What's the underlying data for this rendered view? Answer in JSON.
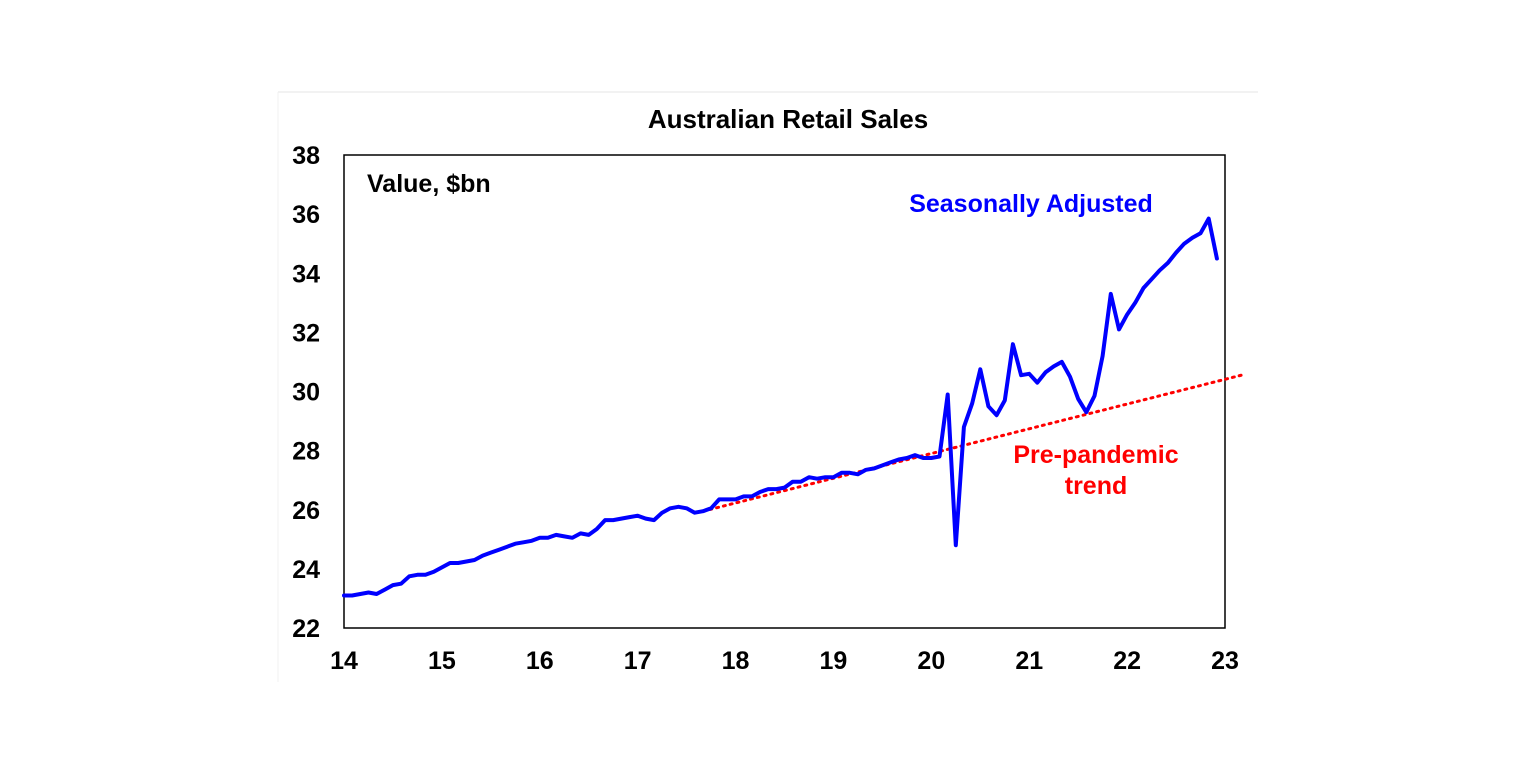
{
  "chart_data": {
    "type": "line",
    "title": "Australian Retail Sales",
    "ylabel": "Value, $bn",
    "xlabel": "",
    "xlim": [
      2014,
      2023
    ],
    "ylim": [
      22,
      38
    ],
    "x_ticks": [
      "14",
      "15",
      "16",
      "17",
      "18",
      "19",
      "20",
      "21",
      "22",
      "23"
    ],
    "y_ticks": [
      "22",
      "24",
      "26",
      "28",
      "30",
      "32",
      "34",
      "36",
      "38"
    ],
    "grid": false,
    "colors": {
      "seasonally_adjusted": "#0000ff",
      "trend": "#ff0000",
      "axis": "#000000"
    },
    "series": [
      {
        "name": "Seasonally Adjusted",
        "style": "solid",
        "x": [
          2014.0,
          2014.083,
          2014.167,
          2014.25,
          2014.333,
          2014.417,
          2014.5,
          2014.583,
          2014.667,
          2014.75,
          2014.833,
          2014.917,
          2015.0,
          2015.083,
          2015.167,
          2015.25,
          2015.333,
          2015.417,
          2015.5,
          2015.583,
          2015.667,
          2015.75,
          2015.833,
          2015.917,
          2016.0,
          2016.083,
          2016.167,
          2016.25,
          2016.333,
          2016.417,
          2016.5,
          2016.583,
          2016.667,
          2016.75,
          2016.833,
          2016.917,
          2017.0,
          2017.083,
          2017.167,
          2017.25,
          2017.333,
          2017.417,
          2017.5,
          2017.583,
          2017.667,
          2017.75,
          2017.833,
          2017.917,
          2018.0,
          2018.083,
          2018.167,
          2018.25,
          2018.333,
          2018.417,
          2018.5,
          2018.583,
          2018.667,
          2018.75,
          2018.833,
          2018.917,
          2019.0,
          2019.083,
          2019.167,
          2019.25,
          2019.333,
          2019.417,
          2019.5,
          2019.583,
          2019.667,
          2019.75,
          2019.833,
          2019.917,
          2020.0,
          2020.083,
          2020.167,
          2020.25,
          2020.333,
          2020.417,
          2020.5,
          2020.583,
          2020.667,
          2020.75,
          2020.833,
          2020.917,
          2021.0,
          2021.083,
          2021.167,
          2021.25,
          2021.333,
          2021.417,
          2021.5,
          2021.583,
          2021.667,
          2021.75,
          2021.833,
          2021.917,
          2022.0,
          2022.083,
          2022.167,
          2022.25,
          2022.333,
          2022.417,
          2022.5,
          2022.583,
          2022.667,
          2022.75,
          2022.833,
          2022.917
        ],
        "values": [
          23.1,
          23.1,
          23.15,
          23.2,
          23.15,
          23.3,
          23.45,
          23.5,
          23.75,
          23.8,
          23.8,
          23.9,
          24.05,
          24.2,
          24.2,
          24.25,
          24.3,
          24.45,
          24.55,
          24.65,
          24.75,
          24.85,
          24.9,
          24.95,
          25.05,
          25.05,
          25.15,
          25.1,
          25.05,
          25.2,
          25.15,
          25.35,
          25.65,
          25.65,
          25.7,
          25.75,
          25.8,
          25.7,
          25.65,
          25.9,
          26.05,
          26.1,
          26.05,
          25.9,
          25.95,
          26.05,
          26.35,
          26.35,
          26.35,
          26.45,
          26.45,
          26.6,
          26.7,
          26.7,
          26.75,
          26.95,
          26.95,
          27.1,
          27.05,
          27.1,
          27.1,
          27.25,
          27.25,
          27.2,
          27.35,
          27.4,
          27.5,
          27.6,
          27.7,
          27.75,
          27.85,
          27.75,
          27.75,
          27.8,
          29.9,
          24.8,
          28.8,
          29.6,
          30.75,
          29.5,
          29.2,
          29.7,
          31.6,
          30.55,
          30.6,
          30.3,
          30.65,
          30.85,
          31.0,
          30.5,
          29.75,
          29.3,
          29.85,
          31.2,
          33.3,
          32.1,
          32.6,
          33.0,
          33.5,
          33.8,
          34.1,
          34.35,
          34.7,
          35.0,
          35.2,
          35.35,
          35.85,
          34.5
        ]
      },
      {
        "name": "Pre-pandemic trend",
        "style": "dotted",
        "x": [
          2017.667,
          2023.167
        ],
        "values": [
          25.95,
          30.55
        ]
      }
    ],
    "annotations": {
      "unit_label": "Value, $bn",
      "sa_label": "Seasonally Adjusted",
      "trend_label_line1": "Pre-pandemic",
      "trend_label_line2": "trend"
    }
  }
}
